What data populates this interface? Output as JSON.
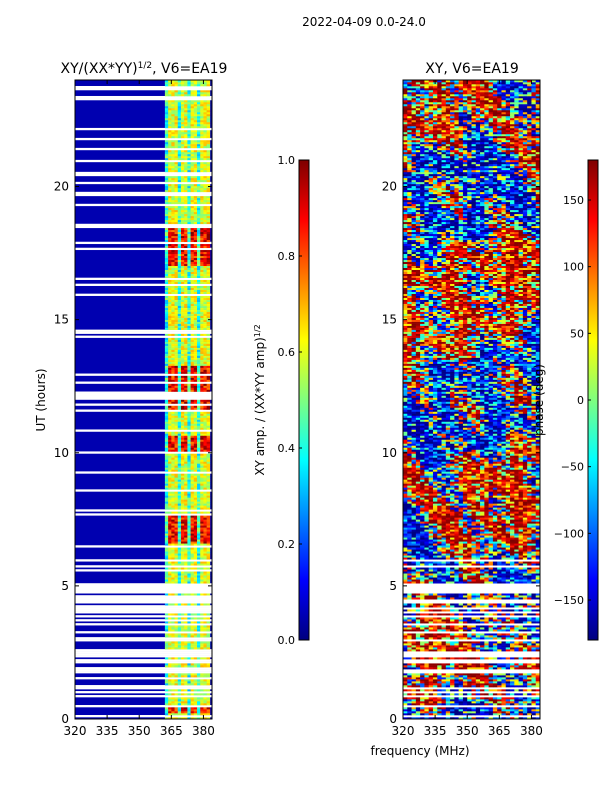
{
  "figure_title": "2022-04-09 0.0-24.0",
  "colors": {
    "jet": [
      "#00007f",
      "#0000ff",
      "#007fff",
      "#00ffff",
      "#7fff7f",
      "#ffff00",
      "#ff7f00",
      "#ff0000",
      "#7f0000"
    ]
  },
  "chart_data": [
    {
      "type": "heatmap",
      "title_main": "XY/(XX*YY)",
      "title_sup": "1/2",
      "title_tail": ", V6=EA19",
      "xlabel": "",
      "ylabel": "UT (hours)",
      "xlim": [
        320,
        384
      ],
      "ylim": [
        0,
        24
      ],
      "xticks": [
        320,
        335,
        350,
        365,
        380
      ],
      "yticks": [
        0,
        5,
        10,
        15,
        20
      ],
      "colorbar": {
        "label_main": "XY amp. / (XX*YY amp)",
        "label_sup": "1/2",
        "range": [
          0.0,
          1.0
        ],
        "ticks": [
          0.0,
          0.2,
          0.4,
          0.6,
          0.8,
          1.0
        ],
        "tick_labels": [
          "0.0",
          "0.2",
          "0.4",
          "0.6",
          "0.8",
          "1.0"
        ]
      },
      "band_columns_mhz": [
        365,
        370,
        375,
        380
      ],
      "hot_intervals_hours": [
        [
          0.2,
          0.5
        ],
        [
          6.6,
          7.6
        ],
        [
          10.0,
          10.6
        ],
        [
          11.6,
          13.2
        ],
        [
          17.0,
          18.4
        ]
      ]
    },
    {
      "type": "heatmap",
      "title": "XY, V6=EA19",
      "xlabel": "frequency (MHz)",
      "ylabel": "",
      "xlim": [
        320,
        384
      ],
      "ylim": [
        0,
        24
      ],
      "xticks": [
        320,
        335,
        350,
        365,
        380
      ],
      "yticks": [
        0,
        5,
        10,
        15,
        20
      ],
      "colorbar": {
        "label": "phase (deg)",
        "range": [
          -180,
          180
        ],
        "ticks": [
          -150,
          -100,
          -50,
          0,
          50,
          100,
          150
        ],
        "tick_labels": [
          "−150",
          "−100",
          "−50",
          "0",
          "50",
          "100",
          "150"
        ]
      }
    }
  ]
}
